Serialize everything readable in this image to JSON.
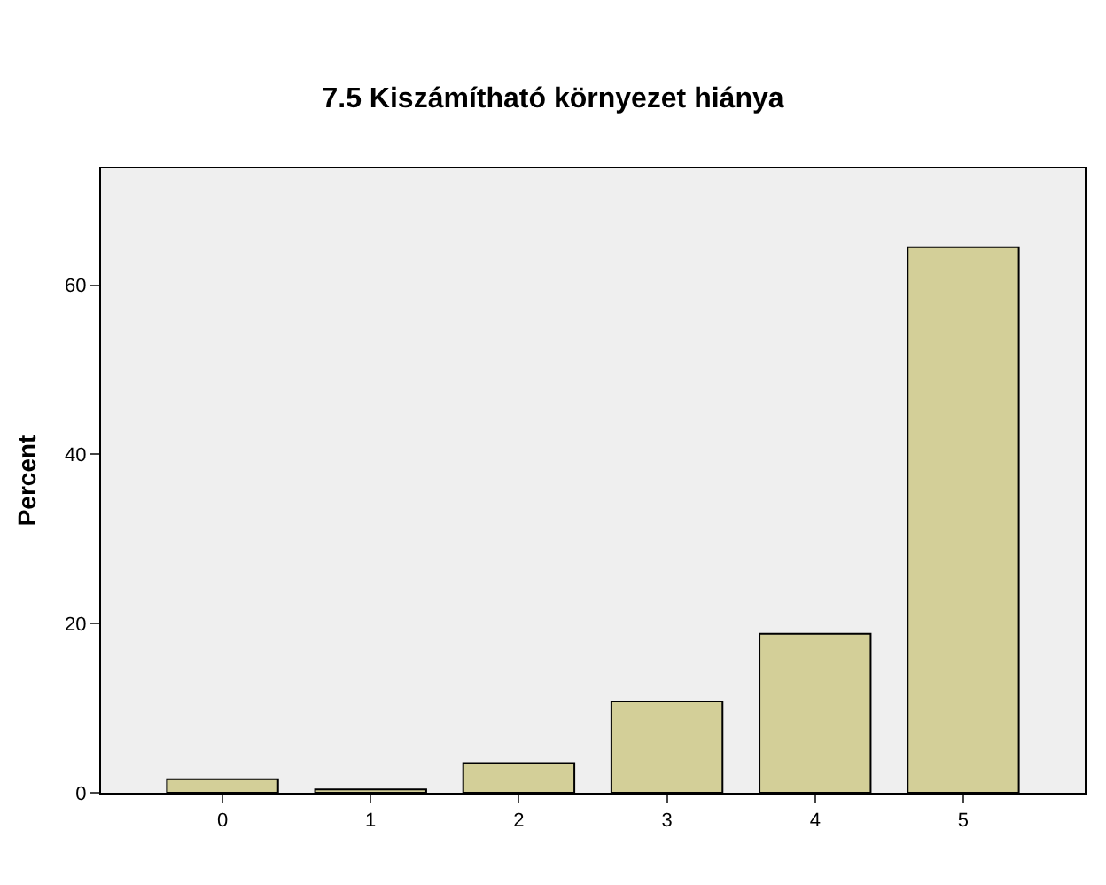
{
  "chart_data": {
    "type": "bar",
    "title": "7.5 Kiszámítható környezet hiánya",
    "ylabel": "Percent",
    "categories": [
      "0",
      "1",
      "2",
      "3",
      "4",
      "5"
    ],
    "values": [
      1.6,
      0.4,
      3.5,
      10.8,
      18.8,
      64.5
    ],
    "color": "#d3cf98",
    "ylim": [
      0,
      73.8
    ],
    "yticks": [
      0,
      20,
      40,
      60
    ],
    "grid": false,
    "legend": false
  }
}
